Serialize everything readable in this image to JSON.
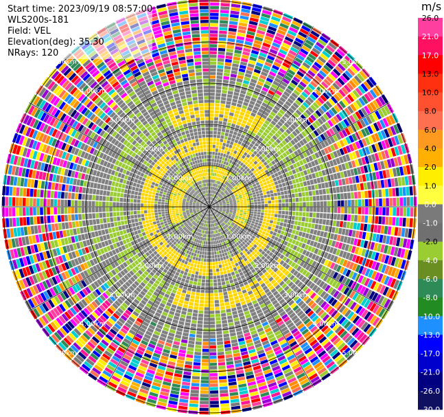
{
  "header": {
    "start_time": "Start time: 2023/09/19 08:57:00",
    "site": "WLS200s-181",
    "field": "Field: VEL",
    "elevation": "Elevation(deg): 35.30",
    "nrays": "NRays: 120"
  },
  "range_rings": [
    {
      "label": "1.00km"
    },
    {
      "label": "2.00km"
    },
    {
      "label": "3.00km"
    },
    {
      "label": "4.00km"
    },
    {
      "label": "5.00km"
    }
  ],
  "colorbar": {
    "unit": "m/s",
    "ticks": [
      "26.0",
      "21.0",
      "17.0",
      "13.0",
      "10.0",
      "8.0",
      "6.0",
      "4.0",
      "2.0",
      "1.0",
      "0.0",
      "-1.0",
      "-2.0",
      "-4.0",
      "-6.0",
      "-8.0",
      "-10.0",
      "-13.0",
      "-17.0",
      "-21.0",
      "-26.0",
      "-30.0"
    ],
    "colors": [
      "#ff3fa0",
      "#ff1060",
      "#ff0000",
      "#ff3010",
      "#ff5030",
      "#ff7050",
      "#ff9a20",
      "#ffb000",
      "#ffee00",
      "#ffff40",
      "#7a7a7a",
      "#707070",
      "#9acd32",
      "#6b8e23",
      "#2e8b57",
      "#228b22",
      "#1e90ff",
      "#0000ff",
      "#0000cd",
      "#000080",
      "#101060",
      "#080838"
    ]
  },
  "scan": {
    "rays": 120,
    "gates": 60,
    "noise_palette": [
      "#ff1493",
      "#ff3fa0",
      "#ff0000",
      "#ff7050",
      "#ffee00",
      "#ffb000",
      "#9acd32",
      "#2e8b57",
      "#1e90ff",
      "#0000ff",
      "#000080",
      "#9400d3",
      "#ff00ff",
      "#00ced1",
      "#ff8c00",
      "#7a7a7a"
    ]
  }
}
